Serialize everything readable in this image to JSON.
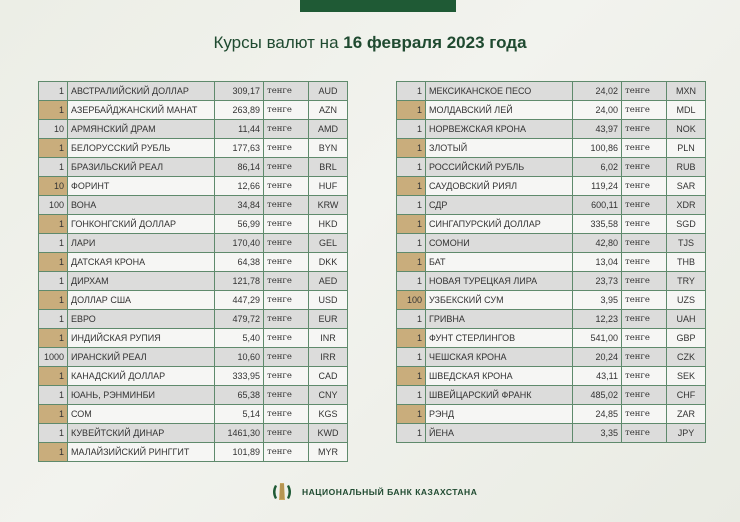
{
  "header": {
    "title_prefix": "Курсы валют на ",
    "title_date": "16 февраля 2023 года"
  },
  "unit_label": "тенге",
  "colors": {
    "brand_green": "#1f5a35",
    "accent_gold": "#c9ad7c",
    "row_gray": "#dcdcdb"
  },
  "left_table": [
    {
      "qty": "1",
      "name": "АВСТРАЛИЙСКИЙ ДОЛЛАР",
      "rate": "309,17",
      "code": "AUD"
    },
    {
      "qty": "1",
      "name": "АЗЕРБАЙДЖАНСКИЙ МАНАТ",
      "rate": "263,89",
      "code": "AZN"
    },
    {
      "qty": "10",
      "name": "АРМЯНСКИЙ  ДРАМ",
      "rate": "11,44",
      "code": "AMD"
    },
    {
      "qty": "1",
      "name": "БЕЛОРУССКИЙ РУБЛЬ",
      "rate": "177,63",
      "code": "BYN"
    },
    {
      "qty": "1",
      "name": "БРАЗИЛЬСКИЙ РЕАЛ",
      "rate": "86,14",
      "code": "BRL"
    },
    {
      "qty": "10",
      "name": "ФОРИНТ",
      "rate": "12,66",
      "code": "HUF"
    },
    {
      "qty": "100",
      "name": "ВОНА",
      "rate": "34,84",
      "code": "KRW"
    },
    {
      "qty": "1",
      "name": "ГОНКОНГСКИЙ ДОЛЛАР",
      "rate": "56,99",
      "code": "HKD"
    },
    {
      "qty": "1",
      "name": "ЛАРИ",
      "rate": "170,40",
      "code": "GEL"
    },
    {
      "qty": "1",
      "name": "ДАТСКАЯ КРОНА",
      "rate": "64,38",
      "code": "DKK"
    },
    {
      "qty": "1",
      "name": "ДИРХАМ",
      "rate": "121,78",
      "code": "AED"
    },
    {
      "qty": "1",
      "name": "ДОЛЛАР США",
      "rate": "447,29",
      "code": "USD"
    },
    {
      "qty": "1",
      "name": "ЕВРО",
      "rate": "479,72",
      "code": "EUR"
    },
    {
      "qty": "1",
      "name": "ИНДИЙСКАЯ РУПИЯ",
      "rate": "5,40",
      "code": "INR"
    },
    {
      "qty": "1000",
      "name": "ИРАНСКИЙ РЕАЛ",
      "rate": "10,60",
      "code": "IRR"
    },
    {
      "qty": "1",
      "name": "КАНАДСКИЙ ДОЛЛАР",
      "rate": "333,95",
      "code": "CAD"
    },
    {
      "qty": "1",
      "name": "ЮАНЬ, РЭНМИНБИ",
      "rate": "65,38",
      "code": "CNY"
    },
    {
      "qty": "1",
      "name": "СОМ",
      "rate": "5,14",
      "code": "KGS"
    },
    {
      "qty": "1",
      "name": "КУВЕЙТСКИЙ ДИНАР",
      "rate": "1461,30",
      "code": "KWD"
    },
    {
      "qty": "1",
      "name": "МАЛАЙЗИЙСКИЙ РИНГГИТ",
      "rate": "101,89",
      "code": "MYR"
    }
  ],
  "right_table": [
    {
      "qty": "1",
      "name": "МЕКСИКАНСКОЕ ПЕСО",
      "rate": "24,02",
      "code": "MXN"
    },
    {
      "qty": "1",
      "name": "МОЛДАВСКИЙ ЛЕЙ",
      "rate": "24,00",
      "code": "MDL"
    },
    {
      "qty": "1",
      "name": "НОРВЕЖСКАЯ КРОНА",
      "rate": "43,97",
      "code": "NOK"
    },
    {
      "qty": "1",
      "name": "ЗЛОТЫЙ",
      "rate": "100,86",
      "code": "PLN"
    },
    {
      "qty": "1",
      "name": "РОССИЙСКИЙ РУБЛЬ",
      "rate": "6,02",
      "code": "RUB"
    },
    {
      "qty": "1",
      "name": "САУДОВСКИЙ РИЯЛ",
      "rate": "119,24",
      "code": "SAR"
    },
    {
      "qty": "1",
      "name": "СДР",
      "rate": "600,11",
      "code": "XDR"
    },
    {
      "qty": "1",
      "name": "СИНГАПУРСКИЙ ДОЛЛАР",
      "rate": "335,58",
      "code": "SGD"
    },
    {
      "qty": "1",
      "name": "СОМОНИ",
      "rate": "42,80",
      "code": "TJS"
    },
    {
      "qty": "1",
      "name": "БАТ",
      "rate": "13,04",
      "code": "THB"
    },
    {
      "qty": "1",
      "name": "НОВАЯ ТУРЕЦКАЯ ЛИРА",
      "rate": "23,73",
      "code": "TRY"
    },
    {
      "qty": "100",
      "name": "УЗБЕКСКИЙ СУМ",
      "rate": "3,95",
      "code": "UZS"
    },
    {
      "qty": "1",
      "name": "ГРИВНА",
      "rate": "12,23",
      "code": "UAH"
    },
    {
      "qty": "1",
      "name": "ФУНТ СТЕРЛИНГОВ",
      "rate": "541,00",
      "code": "GBP"
    },
    {
      "qty": "1",
      "name": "ЧЕШСКАЯ КРОНА",
      "rate": "20,24",
      "code": "CZK"
    },
    {
      "qty": "1",
      "name": "ШВЕДСКАЯ КРОНА",
      "rate": "43,11",
      "code": "SEK"
    },
    {
      "qty": "1",
      "name": "ШВЕЙЦАРСКИЙ ФРАНК",
      "rate": "485,02",
      "code": "CHF"
    },
    {
      "qty": "1",
      "name": "РЭНД",
      "rate": "24,85",
      "code": "ZAR"
    },
    {
      "qty": "1",
      "name": "ЙЕНА",
      "rate": "3,35",
      "code": "JPY"
    }
  ],
  "footer": {
    "bank_name": "НАЦИОНАЛЬНЫЙ БАНК КАЗАХСТАНА",
    "logo_icon": "national-bank-emblem"
  }
}
